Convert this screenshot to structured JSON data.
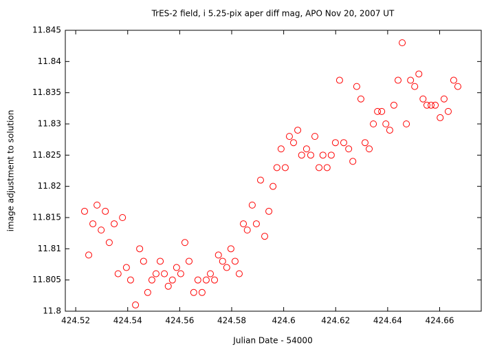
{
  "chart_data": {
    "type": "scatter",
    "title": "TrES-2 field, i 5.25-pix aper diff mag, APO Nov 20, 2007 UT",
    "xlabel": "Julian Date - 54000",
    "ylabel": "image adjustment to solution",
    "color": "#ff0000",
    "marker": "open-circle",
    "grid": false,
    "xlim": [
      424.516,
      424.676
    ],
    "xticks": [
      424.52,
      424.54,
      424.56,
      424.58,
      424.6,
      424.62,
      424.64,
      424.66
    ],
    "ylim": [
      11.8,
      11.845
    ],
    "yticks": [
      11.8,
      11.805,
      11.81,
      11.815,
      11.82,
      11.825,
      11.83,
      11.835,
      11.84,
      11.845
    ],
    "x": [
      424.5234,
      424.525,
      424.5266,
      424.5282,
      424.5298,
      424.5314,
      424.5329,
      424.5348,
      424.5363,
      424.538,
      424.5395,
      424.5411,
      424.543,
      424.5446,
      424.5461,
      424.5477,
      424.5493,
      424.5509,
      424.5525,
      424.5541,
      424.5556,
      424.5572,
      424.5588,
      424.5604,
      424.562,
      424.5636,
      424.5654,
      424.567,
      424.5686,
      424.5702,
      424.5718,
      424.5734,
      424.5749,
      424.5765,
      424.5781,
      424.5797,
      424.5813,
      424.5829,
      424.5845,
      424.586,
      424.5879,
      424.5895,
      424.5911,
      424.5927,
      424.5943,
      424.5959,
      424.5974,
      424.599,
      424.6006,
      424.6022,
      424.6038,
      424.6054,
      424.6069,
      424.6088,
      424.6104,
      424.612,
      424.6136,
      424.6151,
      424.6167,
      424.6183,
      424.6199,
      424.6215,
      424.6231,
      424.625,
      424.6266,
      424.6281,
      424.6297,
      424.6313,
      424.6329,
      424.6345,
      424.6361,
      424.6377,
      424.6393,
      424.6408,
      424.6424,
      424.644,
      424.6456,
      424.6472,
      424.6488,
      424.6504,
      424.652,
      424.6536,
      424.6551,
      424.6567,
      424.6583,
      424.6602,
      424.6617,
      424.6633,
      424.6654,
      424.667
    ],
    "y": [
      11.816,
      11.809,
      11.814,
      11.817,
      11.813,
      11.816,
      11.811,
      11.814,
      11.806,
      11.815,
      11.807,
      11.805,
      11.801,
      11.81,
      11.808,
      11.803,
      11.805,
      11.806,
      11.808,
      11.806,
      11.804,
      11.805,
      11.807,
      11.806,
      11.811,
      11.808,
      11.803,
      11.805,
      11.803,
      11.805,
      11.806,
      11.805,
      11.809,
      11.808,
      11.807,
      11.81,
      11.808,
      11.806,
      11.814,
      11.813,
      11.817,
      11.814,
      11.821,
      11.812,
      11.816,
      11.82,
      11.823,
      11.826,
      11.823,
      11.828,
      11.827,
      11.829,
      11.825,
      11.826,
      11.825,
      11.828,
      11.823,
      11.825,
      11.823,
      11.825,
      11.827,
      11.837,
      11.827,
      11.826,
      11.824,
      11.836,
      11.834,
      11.827,
      11.826,
      11.83,
      11.832,
      11.832,
      11.83,
      11.829,
      11.833,
      11.837,
      11.843,
      11.83,
      11.837,
      11.836,
      11.838,
      11.834,
      11.833,
      11.833,
      11.833,
      11.831,
      11.834,
      11.832,
      11.837,
      11.836
    ]
  }
}
